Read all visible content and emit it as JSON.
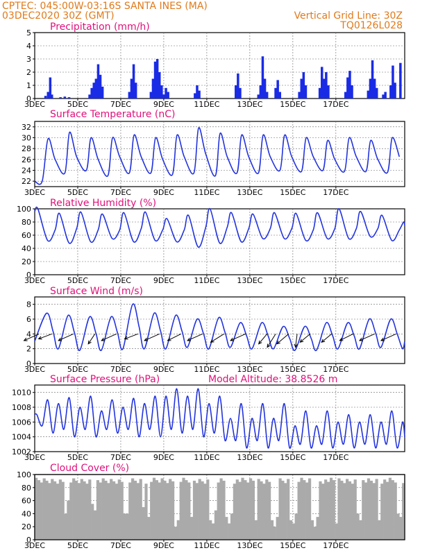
{
  "header": {
    "line1_left": "CPTEC:   045:00W-03:16S   SANTA INES (MA)",
    "line2_left": "03DEC2020 30Z (GMT)",
    "line1_right": "Vertical Grid Line: 30Z",
    "line2_right": "TQ0126L028",
    "color": "#e07a1a"
  },
  "colors": {
    "title": "#e0107a",
    "line": "#2233dd",
    "bar": "#1a2be6",
    "cloud": "#aaaaaa",
    "grid": "#666666"
  },
  "x_labels": [
    "3DEC",
    "5DEC",
    "7DEC",
    "9DEC",
    "11DEC",
    "13DEC",
    "15DEC",
    "17DEC"
  ],
  "chart_data": [
    {
      "type": "bar",
      "title": "Precipitation (mm/h)",
      "ylim": [
        0,
        5
      ],
      "yticks": [
        0,
        1,
        2,
        3,
        4,
        5
      ],
      "x": {
        "start": "3DEC",
        "days": 17.2,
        "step_hours": 3
      },
      "events": [
        {
          "day": 0.5,
          "v": 0.2
        },
        {
          "day": 0.62,
          "v": 0.5
        },
        {
          "day": 0.72,
          "v": 1.6
        },
        {
          "day": 0.8,
          "v": 0.3
        },
        {
          "day": 1.2,
          "v": 0.1
        },
        {
          "day": 1.4,
          "v": 0.15
        },
        {
          "day": 1.6,
          "v": 0.1
        },
        {
          "day": 2.55,
          "v": 0.3
        },
        {
          "day": 2.65,
          "v": 0.8
        },
        {
          "day": 2.75,
          "v": 1.2
        },
        {
          "day": 2.85,
          "v": 1.5
        },
        {
          "day": 2.95,
          "v": 2.6
        },
        {
          "day": 3.05,
          "v": 1.8
        },
        {
          "day": 3.15,
          "v": 0.9
        },
        {
          "day": 4.4,
          "v": 0.5
        },
        {
          "day": 4.5,
          "v": 1.5
        },
        {
          "day": 4.6,
          "v": 2.6
        },
        {
          "day": 4.7,
          "v": 1.2
        },
        {
          "day": 5.4,
          "v": 0.5
        },
        {
          "day": 5.5,
          "v": 1.5
        },
        {
          "day": 5.6,
          "v": 2.8
        },
        {
          "day": 5.7,
          "v": 3.0
        },
        {
          "day": 5.8,
          "v": 2.0
        },
        {
          "day": 5.9,
          "v": 1.0
        },
        {
          "day": 6.0,
          "v": 0.3
        },
        {
          "day": 6.1,
          "v": 0.8
        },
        {
          "day": 6.2,
          "v": 0.5
        },
        {
          "day": 7.45,
          "v": 0.4
        },
        {
          "day": 7.55,
          "v": 1.0
        },
        {
          "day": 7.65,
          "v": 0.6
        },
        {
          "day": 9.35,
          "v": 1.0
        },
        {
          "day": 9.45,
          "v": 1.9
        },
        {
          "day": 9.55,
          "v": 0.8
        },
        {
          "day": 10.4,
          "v": 0.3
        },
        {
          "day": 10.5,
          "v": 1.0
        },
        {
          "day": 10.6,
          "v": 3.2
        },
        {
          "day": 10.7,
          "v": 1.5
        },
        {
          "day": 10.8,
          "v": 0.5
        },
        {
          "day": 11.2,
          "v": 0.8
        },
        {
          "day": 11.3,
          "v": 1.4
        },
        {
          "day": 11.4,
          "v": 0.5
        },
        {
          "day": 12.3,
          "v": 0.5
        },
        {
          "day": 12.4,
          "v": 1.5
        },
        {
          "day": 12.5,
          "v": 2.0
        },
        {
          "day": 12.6,
          "v": 1.0
        },
        {
          "day": 13.25,
          "v": 0.8
        },
        {
          "day": 13.35,
          "v": 2.4
        },
        {
          "day": 13.45,
          "v": 1.5
        },
        {
          "day": 13.55,
          "v": 2.0
        },
        {
          "day": 13.65,
          "v": 1.0
        },
        {
          "day": 14.45,
          "v": 0.5
        },
        {
          "day": 14.55,
          "v": 1.6
        },
        {
          "day": 14.65,
          "v": 2.1
        },
        {
          "day": 14.75,
          "v": 1.0
        },
        {
          "day": 15.5,
          "v": 0.6
        },
        {
          "day": 15.6,
          "v": 1.5
        },
        {
          "day": 15.7,
          "v": 2.9
        },
        {
          "day": 15.8,
          "v": 1.5
        },
        {
          "day": 15.9,
          "v": 0.8
        },
        {
          "day": 16.2,
          "v": 0.3
        },
        {
          "day": 16.3,
          "v": 0.5
        },
        {
          "day": 16.55,
          "v": 1.0
        },
        {
          "day": 16.65,
          "v": 2.5
        },
        {
          "day": 16.75,
          "v": 1.2
        },
        {
          "day": 17.0,
          "v": 2.7
        }
      ]
    },
    {
      "type": "line",
      "title": "Surface Temperature (nC)",
      "ylim": [
        21,
        33
      ],
      "yticks": [
        22,
        24,
        26,
        28,
        30,
        32
      ],
      "x": {
        "start": "3DEC",
        "days": 17.2
      },
      "base": {
        "y0": 22,
        "x": [
          0.35,
          0.42
        ],
        "y": [
          22,
          22
        ]
      },
      "daily": {
        "first_day": 0,
        "last_day": 17,
        "rise_offset": 0.45,
        "max_offset": 0.62,
        "decline_offset": 0.95,
        "min_offset": 1.4,
        "max": [
          29.8,
          31.0,
          30.0,
          30.0,
          30.5,
          30.0,
          30.5,
          31.8,
          30.8,
          30.5,
          30.5,
          30.5,
          30.0,
          29.5,
          30.0,
          29.5,
          30.0,
          30.8
        ],
        "min": [
          23.5,
          24.0,
          23.0,
          23.5,
          23.5,
          23.2,
          23.5,
          23.0,
          23.5,
          23.5,
          24.0,
          23.8,
          24.0,
          23.8,
          23.8,
          23.6,
          23.6,
          23.5
        ],
        "decline": [
          26.0,
          26.5,
          26.0,
          26.5,
          26.5,
          26.0,
          26.5,
          27.0,
          26.5,
          26.5,
          26.5,
          26.5,
          26.5,
          26.0,
          26.5,
          26.0,
          26.5,
          27.0
        ]
      }
    },
    {
      "type": "line",
      "title": "Relative Humidity (%)",
      "ylim": [
        0,
        100
      ],
      "yticks": [
        0,
        20,
        40,
        60,
        80,
        100
      ],
      "x": {
        "start": "3DEC",
        "days": 17.2
      },
      "daily": {
        "first_day": 0,
        "last_day": 17,
        "max": [
          100,
          93,
          95,
          92,
          94,
          95,
          85,
          90,
          100,
          94,
          92,
          94,
          93,
          94,
          100,
          96,
          90,
          80
        ],
        "min": [
          52,
          48,
          50,
          55,
          50,
          52,
          50,
          42,
          48,
          50,
          55,
          55,
          52,
          55,
          55,
          58,
          52,
          50
        ],
        "mid": [
          68,
          70,
          68,
          68,
          70,
          68,
          68,
          72,
          72,
          70,
          70,
          70,
          68,
          70,
          70,
          70,
          68,
          68
        ]
      }
    },
    {
      "type": "line",
      "title": "Surface Wind (m/s)",
      "ylim": [
        0,
        9
      ],
      "yticks": [
        0,
        2,
        4,
        6,
        8
      ],
      "x": {
        "start": "3DEC",
        "days": 17.2
      },
      "daily": {
        "first_day": 0,
        "last_day": 17,
        "max": [
          6.8,
          6.5,
          6.3,
          6.3,
          8.0,
          6.8,
          6.5,
          6.0,
          6.2,
          5.5,
          5.5,
          5.0,
          5.0,
          5.5,
          5.5,
          6.0,
          6.0,
          5.8
        ],
        "min": [
          2.0,
          1.8,
          1.8,
          2.0,
          2.0,
          2.0,
          2.2,
          2.0,
          2.2,
          2.0,
          2.0,
          1.8,
          1.8,
          2.0,
          2.0,
          2.2,
          2.0,
          2.5
        ]
      },
      "vectors": {
        "level": 4,
        "arrows": [
          {
            "day": 0.2,
            "dx": -9,
            "dy": 4
          },
          {
            "day": 0.8,
            "dx": -8,
            "dy": 3
          },
          {
            "day": 1.8,
            "dx": -9,
            "dy": 4
          },
          {
            "day": 2.8,
            "dx": -4,
            "dy": 6
          },
          {
            "day": 3.8,
            "dx": -9,
            "dy": 4
          },
          {
            "day": 4.8,
            "dx": -8,
            "dy": 3
          },
          {
            "day": 5.8,
            "dx": -9,
            "dy": 4
          },
          {
            "day": 6.8,
            "dx": -8,
            "dy": 4
          },
          {
            "day": 7.8,
            "dx": -9,
            "dy": 4
          },
          {
            "day": 8.8,
            "dx": -8,
            "dy": 5
          },
          {
            "day": 9.8,
            "dx": -9,
            "dy": 4
          },
          {
            "day": 10.8,
            "dx": -5,
            "dy": 6
          },
          {
            "day": 11.2,
            "dx": -5,
            "dy": 8
          },
          {
            "day": 11.8,
            "dx": -7,
            "dy": 6
          },
          {
            "day": 12.2,
            "dx": -1,
            "dy": 8
          },
          {
            "day": 12.8,
            "dx": -6,
            "dy": 5
          },
          {
            "day": 13.8,
            "dx": -6,
            "dy": 5
          },
          {
            "day": 14.8,
            "dx": -8,
            "dy": 4
          },
          {
            "day": 15.8,
            "dx": -9,
            "dy": 4
          },
          {
            "day": 16.8,
            "dx": -9,
            "dy": 4
          }
        ]
      }
    },
    {
      "type": "line",
      "title": "Surface Pressure (hPa)",
      "subtitle": "Model Altitude: 38.8526 m",
      "ylim": [
        1002,
        1011
      ],
      "yticks": [
        1002,
        1004,
        1006,
        1008,
        1010
      ],
      "x": {
        "start": "3DEC",
        "days": 17.2
      },
      "semi": {
        "first_day": 0,
        "last_day": 17,
        "max1": [
          1007.0,
          1008.5,
          1008.0,
          1007.5,
          1008.0,
          1008.5,
          1009.5,
          1009.5,
          1008.5,
          1006.5,
          1006.5,
          1006.5,
          1005.5,
          1005.5,
          1006.0,
          1006.0,
          1006.0,
          1006.0
        ],
        "max2": [
          1009.0,
          1009.3,
          1009.5,
          1009.0,
          1009.2,
          1009.5,
          1010.5,
          1010.5,
          1009.5,
          1008.5,
          1008.5,
          1008.5,
          1007.5,
          1007.5,
          1007.0,
          1007.0,
          1007.5,
          1007.5
        ],
        "min1": [
          1005.5,
          1005.0,
          1005.0,
          1005.0,
          1005.0,
          1005.0,
          1005.0,
          1005.0,
          1004.5,
          1003.5,
          1003.5,
          1003.5,
          1003.0,
          1003.0,
          1003.0,
          1003.0,
          1003.0,
          1003.0
        ],
        "min2": [
          1004.5,
          1004.0,
          1004.0,
          1004.5,
          1004.0,
          1004.0,
          1004.5,
          1004.0,
          1003.5,
          1002.5,
          1002.5,
          1002.5,
          1002.5,
          1002.5,
          1002.5,
          1002.5,
          1002.5,
          1002.5
        ]
      }
    },
    {
      "type": "area",
      "title": "Cloud Cover (%)",
      "ylim": [
        0,
        100
      ],
      "yticks": [
        0,
        20,
        40,
        60,
        80,
        100
      ],
      "x": {
        "start": "3DEC",
        "days": 17.2,
        "step_hours": 3
      },
      "level": 95,
      "gaps": [
        {
          "day": 1.35,
          "v": 40
        },
        {
          "day": 1.45,
          "v": 45
        },
        {
          "day": 1.55,
          "v": 60
        },
        {
          "day": 2.6,
          "v": 55
        },
        {
          "day": 2.75,
          "v": 45
        },
        {
          "day": 4.1,
          "v": 40
        },
        {
          "day": 4.2,
          "v": 25
        },
        {
          "day": 4.3,
          "v": 40
        },
        {
          "day": 5.0,
          "v": 50
        },
        {
          "day": 5.2,
          "v": 35
        },
        {
          "day": 6.5,
          "v": 20
        },
        {
          "day": 6.6,
          "v": 30
        },
        {
          "day": 7.3,
          "v": 35
        },
        {
          "day": 8.1,
          "v": 30
        },
        {
          "day": 8.2,
          "v": 25
        },
        {
          "day": 8.35,
          "v": 45
        },
        {
          "day": 8.9,
          "v": 35
        },
        {
          "day": 9.0,
          "v": 25
        },
        {
          "day": 9.1,
          "v": 40
        },
        {
          "day": 10.2,
          "v": 25
        },
        {
          "day": 10.3,
          "v": 30
        },
        {
          "day": 10.95,
          "v": 30
        },
        {
          "day": 11.1,
          "v": 20
        },
        {
          "day": 11.25,
          "v": 35
        },
        {
          "day": 11.9,
          "v": 30
        },
        {
          "day": 12.05,
          "v": 25
        },
        {
          "day": 12.15,
          "v": 40
        },
        {
          "day": 12.9,
          "v": 30
        },
        {
          "day": 13.0,
          "v": 20
        },
        {
          "day": 13.1,
          "v": 35
        },
        {
          "day": 13.95,
          "v": 35
        },
        {
          "day": 14.05,
          "v": 25
        },
        {
          "day": 15.0,
          "v": 40
        },
        {
          "day": 15.1,
          "v": 30
        },
        {
          "day": 15.95,
          "v": 45
        },
        {
          "day": 16.05,
          "v": 30
        },
        {
          "day": 16.9,
          "v": 40
        },
        {
          "day": 17.05,
          "v": 35
        }
      ]
    }
  ]
}
